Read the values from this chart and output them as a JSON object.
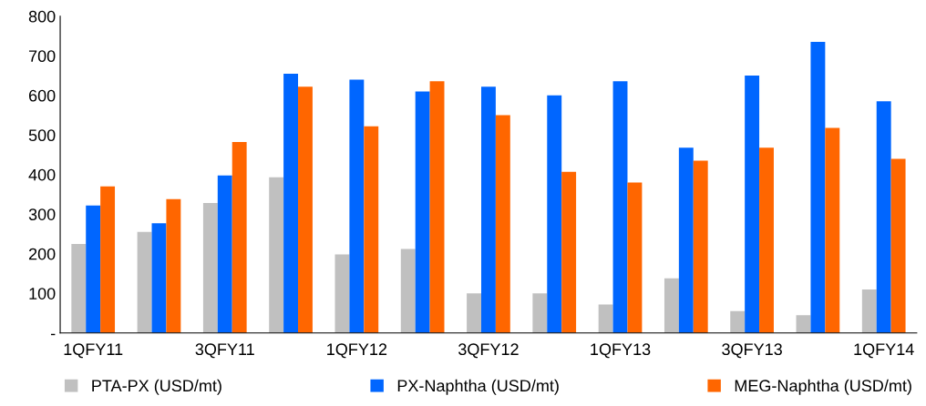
{
  "chart_data": {
    "type": "bar",
    "categories": [
      "1QFY11",
      null,
      "3QFY11",
      null,
      "1QFY12",
      null,
      "3QFY12",
      null,
      "1QFY13",
      null,
      "3QFY13",
      null,
      "1QFY14"
    ],
    "series": [
      {
        "name": "PTA-PX (USD/mt)",
        "color": "#c0c0c0",
        "values": [
          225,
          255,
          328,
          393,
          198,
          212,
          100,
          100,
          72,
          138,
          55,
          45,
          110
        ]
      },
      {
        "name": "PX-Naphtha (USD/mt)",
        "color": "#0066ff",
        "values": [
          322,
          277,
          398,
          655,
          640,
          610,
          622,
          600,
          636,
          468,
          650,
          735,
          585
        ]
      },
      {
        "name": "MEG-Naphtha (USD/mt)",
        "color": "#ff6600",
        "values": [
          370,
          338,
          482,
          622,
          522,
          636,
          550,
          407,
          380,
          435,
          468,
          518,
          440
        ]
      }
    ],
    "ylim": [
      0,
      800
    ],
    "yticks": [
      {
        "value": 0,
        "label": "-"
      },
      100,
      200,
      300,
      400,
      500,
      600,
      700,
      800
    ],
    "grid": false,
    "legend": "bottom"
  }
}
